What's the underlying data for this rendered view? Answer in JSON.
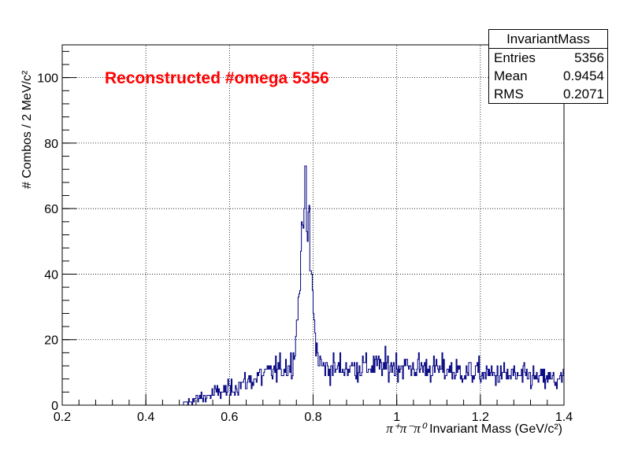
{
  "chart_data": {
    "type": "histogram",
    "hist_name": "InvariantMass",
    "title": "Reconstructed #omega 5356",
    "xlabel_symbol": "π⁺π⁻π⁰",
    "xlabel_text": "Invariant Mass (GeV/c²)",
    "ylabel": "# Combos / 2 MeV/c²",
    "xlim": [
      0.2,
      1.4
    ],
    "ylim": [
      0,
      110
    ],
    "bin_width": 0.002,
    "xticks": [
      "0.2",
      "0.4",
      "0.6",
      "0.8",
      "1",
      "1.2",
      "1.4"
    ],
    "yticks": [
      "0",
      "20",
      "40",
      "60",
      "80",
      "100"
    ],
    "grid": true,
    "line_color": "#00007f",
    "title_color": "#ff0000",
    "stats": {
      "entries_label": "Entries",
      "entries": "5356",
      "mean_label": "Mean",
      "mean": "0.9454",
      "rms_label": "RMS",
      "rms": "0.2071"
    },
    "shape": {
      "onset": 0.49,
      "peak_x": 0.782,
      "peak_max": 73,
      "peak_bulk": 60,
      "background_level": 10,
      "description_points": [
        {
          "x": 0.5,
          "y": 1
        },
        {
          "x": 0.6,
          "y": 5
        },
        {
          "x": 0.7,
          "y": 11
        },
        {
          "x": 0.75,
          "y": 20
        },
        {
          "x": 0.782,
          "y": 60
        },
        {
          "x": 0.82,
          "y": 16
        },
        {
          "x": 0.9,
          "y": 11
        },
        {
          "x": 1.0,
          "y": 12
        },
        {
          "x": 1.2,
          "y": 9
        },
        {
          "x": 1.4,
          "y": 7
        }
      ]
    }
  }
}
